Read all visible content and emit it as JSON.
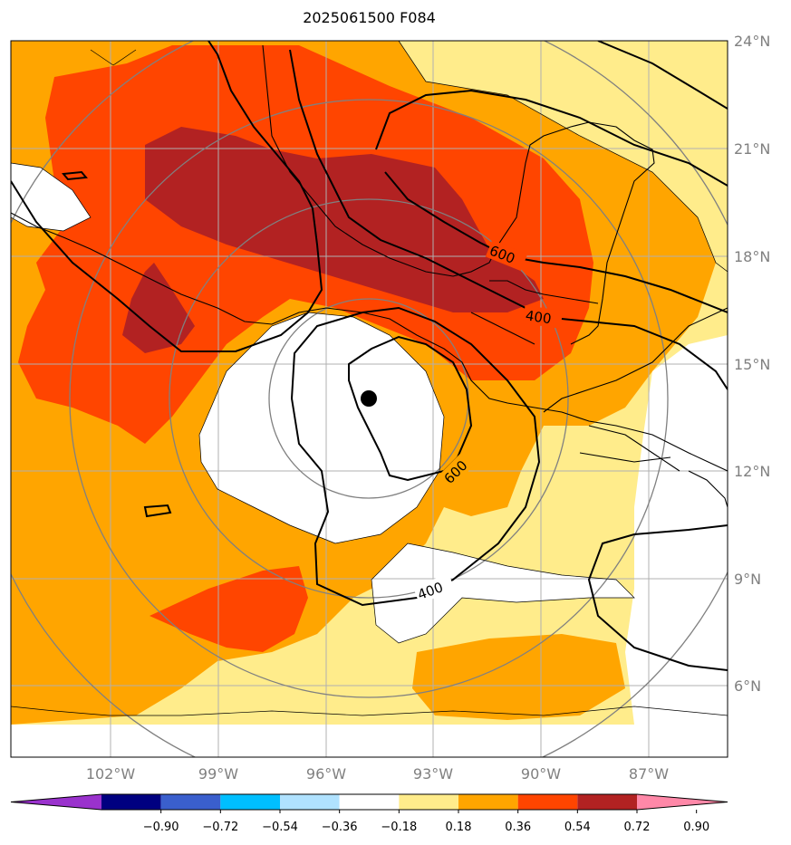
{
  "title": "2025061500 F084",
  "map": {
    "lon_labels": [
      "102°W",
      "99°W",
      "96°W",
      "93°W",
      "90°W",
      "87°W"
    ],
    "lat_labels": [
      "24°N",
      "21°N",
      "18°N",
      "15°N",
      "12°N",
      "9°N",
      "6°N"
    ],
    "contour_labels": [
      "600",
      "400",
      "600",
      "400"
    ],
    "storm_center_marker": "filled-black-circle"
  },
  "colorbar": {
    "colors": [
      "#9a32cd",
      "#000080",
      "#3a5fcd",
      "#00bfff",
      "#b0e2ff",
      "#ffffff",
      "#ffec8b",
      "#ffa500",
      "#ff4500",
      "#b22222",
      "#ff88a8"
    ],
    "tick_labels": [
      "−0.90",
      "−0.72",
      "−0.54",
      "−0.36",
      "−0.18",
      "0.18",
      "0.36",
      "0.54",
      "0.72",
      "0.90"
    ]
  }
}
